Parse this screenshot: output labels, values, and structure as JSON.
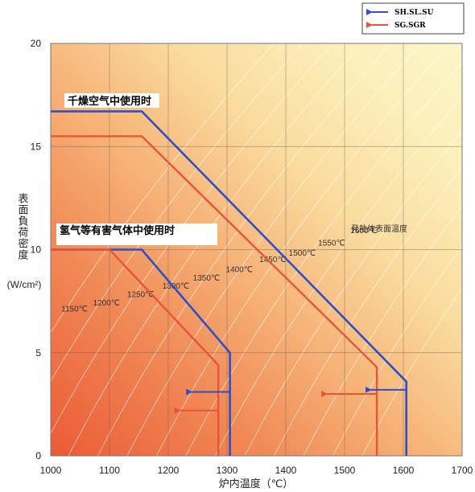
{
  "chart_data": {
    "type": "line",
    "xlabel": "炉内温度（℃）",
    "ylabel": "表面負荷密度 (W/cm²)",
    "ylabel_text": "表面負荷密度",
    "ylabel_unit": "(W/cm²)",
    "xlim": [
      1000,
      1700
    ],
    "ylim": [
      0,
      20
    ],
    "x_ticks": [
      1000,
      1100,
      1200,
      1300,
      1400,
      1500,
      1600,
      1700
    ],
    "y_ticks": [
      0,
      5,
      10,
      15,
      20
    ],
    "grid": true,
    "legend_position": "top-right",
    "series": [
      {
        "name": "SH.SL.SU",
        "color": "#2d4fc8",
        "x": [
          1000,
          1155,
          1605,
          1605
        ],
        "y": [
          16.7,
          16.7,
          3.6,
          0
        ]
      },
      {
        "name": "SH.SL.SU",
        "color": "#2d4fc8",
        "x": [
          1000,
          1155,
          1305,
          1305
        ],
        "y": [
          10.0,
          10.0,
          5.0,
          0
        ]
      },
      {
        "name": "SG.SGR",
        "color": "#e8543a",
        "x": [
          1000,
          1155,
          1555,
          1555
        ],
        "y": [
          15.5,
          15.5,
          4.3,
          0
        ]
      },
      {
        "name": "SG.SGR",
        "color": "#e8543a",
        "x": [
          1000,
          1100,
          1285,
          1285
        ],
        "y": [
          10.0,
          10.0,
          4.4,
          0
        ]
      }
    ],
    "arrows": [
      {
        "series": "SH.SL.SU",
        "x_from": 1305,
        "x_to": 1240,
        "y": 3.1
      },
      {
        "series": "SG.SGR",
        "x_from": 1285,
        "x_to": 1220,
        "y": 2.2
      },
      {
        "series": "SH.SL.SU",
        "x_from": 1605,
        "x_to": 1545,
        "y": 3.2
      },
      {
        "series": "SG.SGR",
        "x_from": 1555,
        "x_to": 1470,
        "y": 3.0
      }
    ],
    "isotherms": [
      {
        "label": "1150℃",
        "x": 1018,
        "y": 7.0
      },
      {
        "label": "1200℃",
        "x": 1072,
        "y": 7.3
      },
      {
        "label": "1250℃",
        "x": 1130,
        "y": 7.7
      },
      {
        "label": "1300℃",
        "x": 1190,
        "y": 8.1
      },
      {
        "label": "1350℃",
        "x": 1242,
        "y": 8.5
      },
      {
        "label": "1400℃",
        "x": 1298,
        "y": 8.9
      },
      {
        "label": "1450℃",
        "x": 1355,
        "y": 9.4
      },
      {
        "label": "1500℃",
        "x": 1405,
        "y": 9.7
      },
      {
        "label": "1550℃",
        "x": 1455,
        "y": 10.2
      },
      {
        "label": "1600℃",
        "x": 1510,
        "y": 10.8
      }
    ],
    "annotations": {
      "dry_air": "千燥空气中使用时",
      "hydrogen": "氢气等有害气体中使用时",
      "surface_temp": "発熱体表面温度"
    }
  }
}
